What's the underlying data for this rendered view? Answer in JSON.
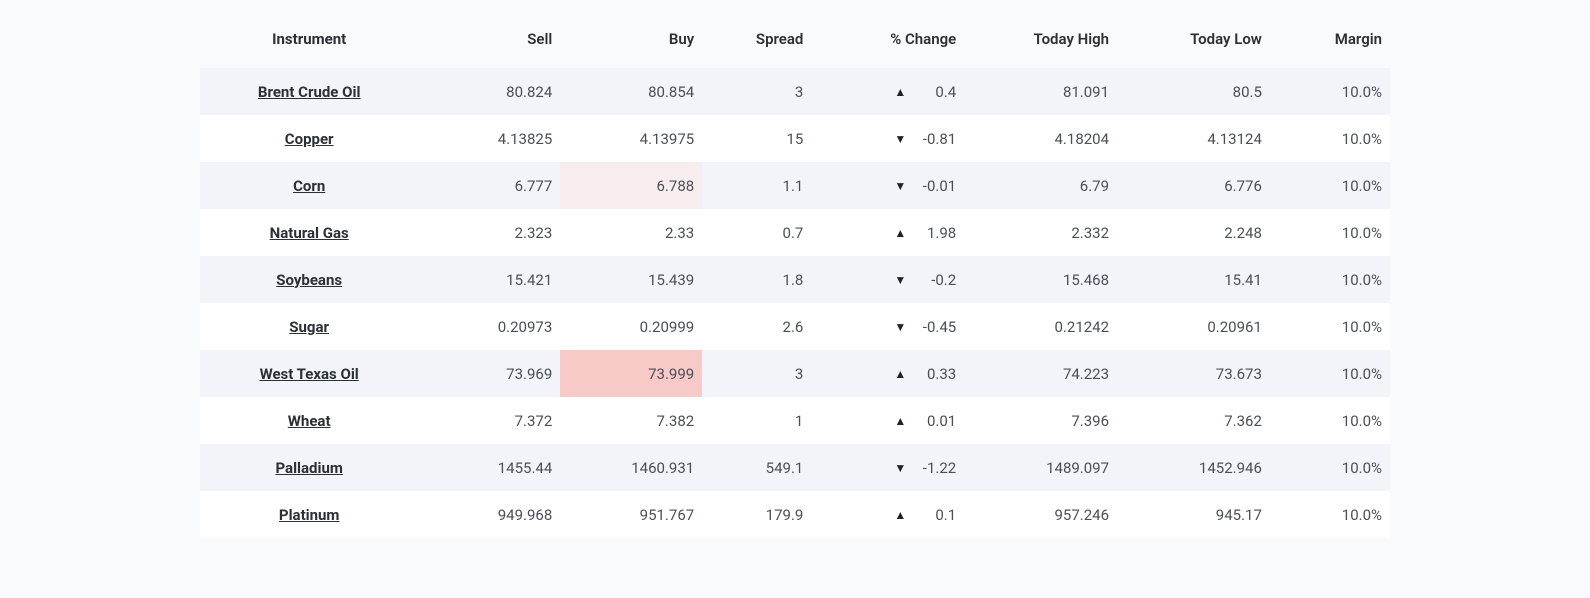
{
  "columns": {
    "instrument": "Instrument",
    "sell": "Sell",
    "buy": "Buy",
    "spread": "Spread",
    "change": "% Change",
    "high": "Today High",
    "low": "Today Low",
    "margin": "Margin"
  },
  "highlight_colors": {
    "light": "#f8edee",
    "strong": "#f7c9c7"
  },
  "row_backgrounds": {
    "odd": "#f2f4f9",
    "even": "#ffffff"
  },
  "arrow_glyphs": {
    "up": "▲",
    "down": "▼"
  },
  "rows": [
    {
      "instrument": "Brent Crude Oil",
      "sell": "80.824",
      "buy": "80.854",
      "buy_hl": "",
      "spread": "3",
      "dir": "up",
      "change": "0.4",
      "high": "81.091",
      "low": "80.5",
      "margin": "10.0%"
    },
    {
      "instrument": "Copper",
      "sell": "4.13825",
      "buy": "4.13975",
      "buy_hl": "",
      "spread": "15",
      "dir": "down",
      "change": "-0.81",
      "high": "4.18204",
      "low": "4.13124",
      "margin": "10.0%"
    },
    {
      "instrument": "Corn",
      "sell": "6.777",
      "buy": "6.788",
      "buy_hl": "light",
      "spread": "1.1",
      "dir": "down",
      "change": "-0.01",
      "high": "6.79",
      "low": "6.776",
      "margin": "10.0%"
    },
    {
      "instrument": "Natural Gas",
      "sell": "2.323",
      "buy": "2.33",
      "buy_hl": "",
      "spread": "0.7",
      "dir": "up",
      "change": "1.98",
      "high": "2.332",
      "low": "2.248",
      "margin": "10.0%"
    },
    {
      "instrument": "Soybeans",
      "sell": "15.421",
      "buy": "15.439",
      "buy_hl": "",
      "spread": "1.8",
      "dir": "down",
      "change": "-0.2",
      "high": "15.468",
      "low": "15.41",
      "margin": "10.0%"
    },
    {
      "instrument": "Sugar",
      "sell": "0.20973",
      "buy": "0.20999",
      "buy_hl": "",
      "spread": "2.6",
      "dir": "down",
      "change": "-0.45",
      "high": "0.21242",
      "low": "0.20961",
      "margin": "10.0%"
    },
    {
      "instrument": "West Texas Oil",
      "sell": "73.969",
      "buy": "73.999",
      "buy_hl": "strong",
      "spread": "3",
      "dir": "up",
      "change": "0.33",
      "high": "74.223",
      "low": "73.673",
      "margin": "10.0%"
    },
    {
      "instrument": "Wheat",
      "sell": "7.372",
      "buy": "7.382",
      "buy_hl": "",
      "spread": "1",
      "dir": "up",
      "change": "0.01",
      "high": "7.396",
      "low": "7.362",
      "margin": "10.0%"
    },
    {
      "instrument": "Palladium",
      "sell": "1455.44",
      "buy": "1460.931",
      "buy_hl": "",
      "spread": "549.1",
      "dir": "down",
      "change": "-1.22",
      "high": "1489.097",
      "low": "1452.946",
      "margin": "10.0%"
    },
    {
      "instrument": "Platinum",
      "sell": "949.968",
      "buy": "951.767",
      "buy_hl": "",
      "spread": "179.9",
      "dir": "up",
      "change": "0.1",
      "high": "957.246",
      "low": "945.17",
      "margin": "10.0%"
    }
  ]
}
